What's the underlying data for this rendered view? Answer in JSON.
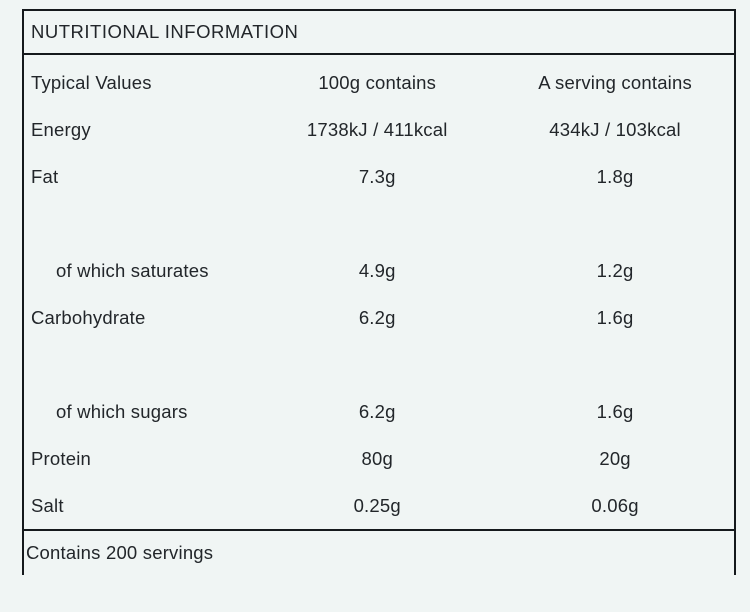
{
  "page": {
    "background_color": "#f0f5f4",
    "text_color": "#22262a",
    "border_color": "#15191c"
  },
  "table": {
    "title": "NUTRITIONAL INFORMATION",
    "header": {
      "col1": "Typical Values",
      "col2": "100g contains",
      "col3": "A serving contains"
    },
    "rows": [
      {
        "label": "Energy",
        "per_100g": "1738kJ / 411kcal",
        "per_serving": "434kJ / 103kcal"
      },
      {
        "label": "Fat",
        "per_100g": "7.3g",
        "per_serving": "1.8g"
      },
      {
        "label": "of which saturates",
        "per_100g": "4.9g",
        "per_serving": "1.2g"
      },
      {
        "label": "Carbohydrate",
        "per_100g": "6.2g",
        "per_serving": "1.6g"
      },
      {
        "label": "of which sugars",
        "per_100g": "6.2g",
        "per_serving": "1.6g"
      },
      {
        "label": "Protein",
        "per_100g": "80g",
        "per_serving": "20g"
      },
      {
        "label": "Salt",
        "per_100g": "0.25g",
        "per_serving": "0.06g"
      }
    ],
    "footer": "Contains 200 servings"
  }
}
